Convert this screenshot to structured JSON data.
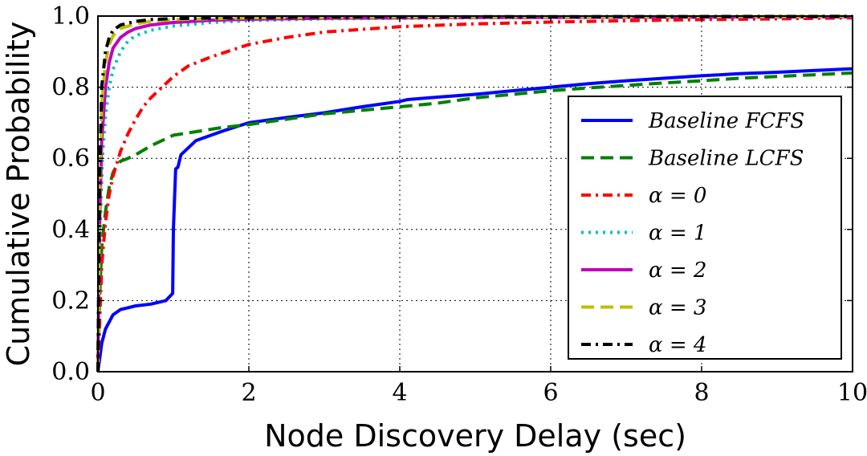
{
  "chart_data": {
    "type": "line",
    "title": "",
    "xlabel": "Node Discovery Delay (sec)",
    "ylabel": "Cumulative Probability",
    "xlim": [
      0,
      10
    ],
    "ylim": [
      0,
      1
    ],
    "xticks": [
      0,
      2,
      4,
      6,
      8,
      10
    ],
    "xtick_labels": [
      "0",
      "2",
      "4",
      "6",
      "8",
      "10"
    ],
    "yticks": [
      0,
      0.2,
      0.4,
      0.6,
      0.8,
      1.0
    ],
    "ytick_labels": [
      "0.0",
      "0.2",
      "0.4",
      "0.6",
      "0.8",
      "1.0"
    ],
    "grid": true,
    "legend_position": "center-right",
    "series": [
      {
        "name": "Baseline FCFS",
        "color": "#0000ff",
        "dash": "solid",
        "x": [
          0,
          0.05,
          0.1,
          0.2,
          0.3,
          0.4,
          0.5,
          0.7,
          0.9,
          0.99,
          1.0,
          1.03,
          1.06,
          1.1,
          1.2,
          1.3,
          1.5,
          1.7,
          2.0,
          2.5,
          3.0,
          3.5,
          4.0,
          4.1,
          4.5,
          5.0,
          5.5,
          6.0,
          6.5,
          7.0,
          7.5,
          8.0,
          8.5,
          9.0,
          9.5,
          10.0
        ],
        "y": [
          0.0,
          0.08,
          0.12,
          0.16,
          0.175,
          0.18,
          0.185,
          0.19,
          0.2,
          0.22,
          0.4,
          0.57,
          0.575,
          0.61,
          0.63,
          0.65,
          0.665,
          0.68,
          0.7,
          0.715,
          0.728,
          0.745,
          0.76,
          0.765,
          0.772,
          0.78,
          0.79,
          0.8,
          0.81,
          0.818,
          0.825,
          0.832,
          0.838,
          0.842,
          0.847,
          0.852
        ]
      },
      {
        "name": "Baseline LCFS",
        "color": "#008000",
        "dash": "dashed",
        "x": [
          0,
          0.02,
          0.05,
          0.1,
          0.15,
          0.2,
          0.25,
          0.3,
          0.4,
          0.5,
          0.7,
          1.0,
          1.3,
          1.6,
          2.0,
          2.5,
          3.0,
          3.5,
          4.0,
          4.5,
          5.0,
          5.5,
          6.0,
          6.5,
          7.0,
          7.5,
          8.0,
          8.5,
          9.0,
          9.5,
          10.0
        ],
        "y": [
          0.0,
          0.2,
          0.35,
          0.45,
          0.52,
          0.56,
          0.58,
          0.592,
          0.6,
          0.61,
          0.635,
          0.665,
          0.675,
          0.685,
          0.695,
          0.71,
          0.725,
          0.735,
          0.745,
          0.755,
          0.77,
          0.78,
          0.79,
          0.798,
          0.805,
          0.812,
          0.818,
          0.825,
          0.83,
          0.835,
          0.84
        ]
      },
      {
        "name": "α = 0",
        "color": "#ff0000",
        "dash": "dashdot",
        "x": [
          0,
          0.05,
          0.1,
          0.15,
          0.2,
          0.3,
          0.4,
          0.5,
          0.6,
          0.7,
          0.8,
          1.0,
          1.2,
          1.5,
          2.0,
          2.5,
          3.0,
          4.0,
          5.0,
          6.0,
          7.0,
          8.0,
          9.0,
          10.0
        ],
        "y": [
          0.0,
          0.3,
          0.42,
          0.5,
          0.55,
          0.62,
          0.67,
          0.71,
          0.745,
          0.77,
          0.79,
          0.83,
          0.86,
          0.885,
          0.92,
          0.94,
          0.955,
          0.97,
          0.978,
          0.983,
          0.987,
          0.99,
          0.992,
          0.995
        ]
      },
      {
        "name": "α = 1",
        "color": "#00bfbf",
        "dash": "dotted",
        "x": [
          0,
          0.03,
          0.06,
          0.1,
          0.15,
          0.2,
          0.3,
          0.4,
          0.5,
          0.7,
          1.0,
          1.5,
          2.0,
          3.0,
          5.0,
          10.0
        ],
        "y": [
          0.0,
          0.4,
          0.6,
          0.72,
          0.8,
          0.85,
          0.9,
          0.93,
          0.945,
          0.96,
          0.972,
          0.982,
          0.987,
          0.992,
          0.995,
          0.998
        ]
      },
      {
        "name": "α = 2",
        "color": "#bf00bf",
        "dash": "solid",
        "x": [
          0,
          0.02,
          0.05,
          0.1,
          0.15,
          0.2,
          0.3,
          0.4,
          0.5,
          0.7,
          1.0,
          1.5,
          2.0,
          3.0,
          5.0,
          10.0
        ],
        "y": [
          0.0,
          0.4,
          0.65,
          0.8,
          0.87,
          0.91,
          0.94,
          0.955,
          0.965,
          0.975,
          0.982,
          0.988,
          0.991,
          0.994,
          0.996,
          0.998
        ]
      },
      {
        "name": "α = 3",
        "color": "#bfbf00",
        "dash": "dashed",
        "x": [
          0,
          0.02,
          0.05,
          0.1,
          0.15,
          0.2,
          0.3,
          0.5,
          0.7,
          1.0,
          2.0,
          4.0,
          10.0
        ],
        "y": [
          0.0,
          0.45,
          0.75,
          0.87,
          0.92,
          0.945,
          0.965,
          0.978,
          0.985,
          0.99,
          0.995,
          0.997,
          0.999
        ]
      },
      {
        "name": "α = 4",
        "color": "#000000",
        "dash": "dashdot",
        "x": [
          0,
          0.02,
          0.05,
          0.1,
          0.15,
          0.2,
          0.3,
          0.5,
          0.7,
          1.0,
          2.0,
          4.0,
          10.0
        ],
        "y": [
          0.0,
          0.5,
          0.8,
          0.9,
          0.94,
          0.96,
          0.975,
          0.985,
          0.99,
          0.993,
          0.996,
          0.998,
          0.999
        ]
      }
    ]
  }
}
